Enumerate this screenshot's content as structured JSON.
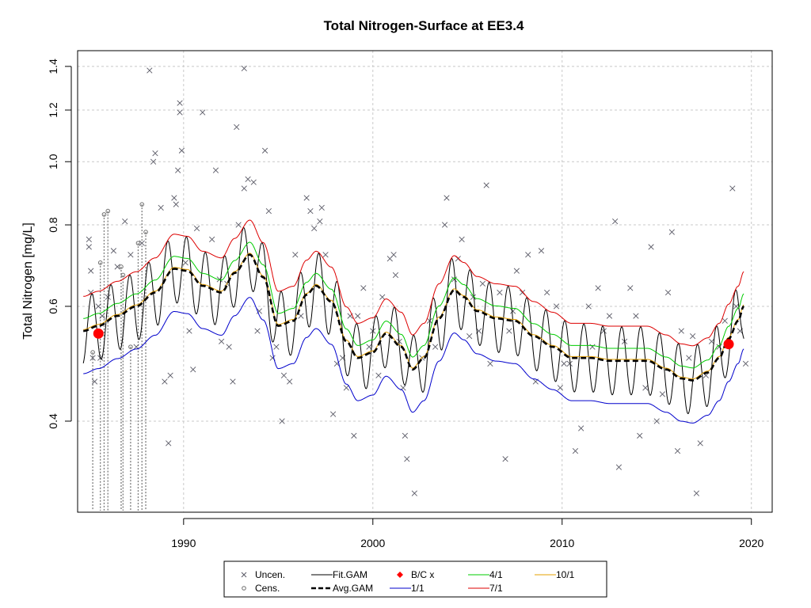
{
  "chart_data": {
    "type": "line",
    "title": "Total Nitrogen-Surface at EE3.4",
    "xlabel": "",
    "ylabel": "Total Nitrogen [mg/L]",
    "ylog": true,
    "xlim": [
      1984.4,
      2021.1
    ],
    "ylim": [
      0.29,
      1.48
    ],
    "x_ticks": [
      1990,
      2000,
      2010,
      2020
    ],
    "x_tick_labels": [
      "1990",
      "2000",
      "2010",
      "2020"
    ],
    "y_ticks": [
      0.4,
      0.6,
      0.8,
      1.0,
      1.2,
      1.4
    ],
    "y_tick_labels": [
      "0.4",
      "0.6",
      "0.8",
      "1.0",
      "1.2",
      "1.4"
    ],
    "grid": true,
    "legend_position": "bottom",
    "legend": [
      {
        "label": "Uncen.",
        "marker": "x",
        "color": "#5a5a66"
      },
      {
        "label": "Cens.",
        "marker": "o",
        "color": "#6e6e6e"
      },
      {
        "label": "Fit.GAM",
        "line": "solid",
        "color": "#000000"
      },
      {
        "label": "Avg.GAM",
        "line": "dashed",
        "color": "#000000"
      },
      {
        "label": "B/C x",
        "marker": "diamond",
        "color": "#ff0000"
      },
      {
        "label": "1/1",
        "line": "solid",
        "color": "#0000cc"
      },
      {
        "label": "4/1",
        "line": "solid",
        "color": "#00cc00"
      },
      {
        "label": "7/1",
        "line": "solid",
        "color": "#dd0000"
      },
      {
        "label": "10/1",
        "line": "solid",
        "color": "#e6a000"
      }
    ],
    "avg_gam": {
      "x": [
        1984.7,
        1985.5,
        1986.5,
        1987.5,
        1988.5,
        1989.5,
        1990.2,
        1991,
        1992,
        1992.7,
        1993.5,
        1994.2,
        1995,
        1995.8,
        1996.5,
        1997,
        1997.8,
        1998.6,
        1999.2,
        2000,
        2000.7,
        2001.5,
        2002.1,
        2002.7,
        2003.5,
        2004.3,
        2004.8,
        2005.5,
        2006.5,
        2007.5,
        2008.5,
        2009.5,
        2010.5,
        2011.5,
        2012.5,
        2013.5,
        2014.5,
        2015.5,
        2016.3,
        2016.9,
        2017.7,
        2018.3,
        2018.8,
        2019.3,
        2019.6
      ],
      "y": [
        0.55,
        0.56,
        0.58,
        0.6,
        0.63,
        0.685,
        0.68,
        0.645,
        0.63,
        0.675,
        0.72,
        0.665,
        0.56,
        0.57,
        0.625,
        0.645,
        0.61,
        0.53,
        0.5,
        0.51,
        0.545,
        0.52,
        0.48,
        0.5,
        0.575,
        0.635,
        0.62,
        0.59,
        0.575,
        0.57,
        0.54,
        0.52,
        0.5,
        0.5,
        0.495,
        0.495,
        0.495,
        0.48,
        0.465,
        0.462,
        0.475,
        0.5,
        0.535,
        0.57,
        0.6
      ]
    },
    "series": [
      {
        "name": "1/1",
        "color": "#0000cc",
        "factor": 0.86
      },
      {
        "name": "4/1",
        "color": "#00cc00",
        "factor": 1.045
      },
      {
        "name": "7/1",
        "color": "#dd0000",
        "factor": 1.13
      },
      {
        "name": "10/1",
        "color": "#e6a000",
        "factor": 1.005
      }
    ],
    "fit_gam_seasonal_amplitude": 0.12,
    "bc_points": [
      {
        "x": 1985.5,
        "y": 0.545
      },
      {
        "x": 2018.8,
        "y": 0.525
      }
    ],
    "uncensored_points": [
      [
        1985,
        0.76
      ],
      [
        1985,
        0.74
      ],
      [
        1985.1,
        0.63
      ],
      [
        1985.1,
        0.68
      ],
      [
        1985.2,
        0.5
      ],
      [
        1985.3,
        0.46
      ],
      [
        1985.5,
        0.6
      ],
      [
        1985.6,
        0.5
      ],
      [
        1985.7,
        0.58
      ],
      [
        1986,
        0.62
      ],
      [
        1986.3,
        0.73
      ],
      [
        1986.5,
        0.69
      ],
      [
        1986.9,
        0.81
      ],
      [
        1987.2,
        0.72
      ],
      [
        1987.5,
        0.52
      ],
      [
        1987.8,
        0.75
      ],
      [
        1988.2,
        1.38
      ],
      [
        1988.4,
        1.0
      ],
      [
        1988.5,
        1.03
      ],
      [
        1988.8,
        0.85
      ],
      [
        1989,
        0.46
      ],
      [
        1989.2,
        0.37
      ],
      [
        1989.3,
        0.47
      ],
      [
        1989.5,
        0.88
      ],
      [
        1989.6,
        0.86
      ],
      [
        1989.7,
        0.97
      ],
      [
        1989.8,
        1.23
      ],
      [
        1989.8,
        1.19
      ],
      [
        1989.9,
        1.04
      ],
      [
        1990.1,
        0.7
      ],
      [
        1990.3,
        0.55
      ],
      [
        1990.5,
        0.48
      ],
      [
        1990.7,
        0.79
      ],
      [
        1991,
        1.19
      ],
      [
        1991.5,
        0.76
      ],
      [
        1991.7,
        0.97
      ],
      [
        1991.9,
        0.66
      ],
      [
        1992,
        0.53
      ],
      [
        1992.3,
        0.65
      ],
      [
        1992.4,
        0.52
      ],
      [
        1992.6,
        0.46
      ],
      [
        1992.8,
        1.13
      ],
      [
        1992.9,
        0.8
      ],
      [
        1993.2,
        1.39
      ],
      [
        1993.2,
        0.91
      ],
      [
        1993.4,
        0.94
      ],
      [
        1993.7,
        0.93
      ],
      [
        1993.9,
        0.55
      ],
      [
        1994,
        0.59
      ],
      [
        1994.3,
        1.04
      ],
      [
        1994.5,
        0.84
      ],
      [
        1994.7,
        0.5
      ],
      [
        1994.9,
        0.52
      ],
      [
        1995.2,
        0.4
      ],
      [
        1995.3,
        0.47
      ],
      [
        1995.6,
        0.46
      ],
      [
        1995.9,
        0.72
      ],
      [
        1996.2,
        0.58
      ],
      [
        1996.5,
        0.88
      ],
      [
        1996.7,
        0.84
      ],
      [
        1996.9,
        0.79
      ],
      [
        1997.2,
        0.81
      ],
      [
        1997.3,
        0.85
      ],
      [
        1997.5,
        0.72
      ],
      [
        1997.9,
        0.41
      ],
      [
        1998.1,
        0.49
      ],
      [
        1998.4,
        0.5
      ],
      [
        1998.6,
        0.45
      ],
      [
        1998.8,
        0.58
      ],
      [
        1999,
        0.38
      ],
      [
        1999.2,
        0.58
      ],
      [
        1999.5,
        0.64
      ],
      [
        1999.8,
        0.52
      ],
      [
        2000,
        0.55
      ],
      [
        2000.3,
        0.47
      ],
      [
        2000.5,
        0.62
      ],
      [
        2000.9,
        0.71
      ],
      [
        2001.1,
        0.72
      ],
      [
        2001.2,
        0.67
      ],
      [
        2001.4,
        0.53
      ],
      [
        2001.6,
        0.45
      ],
      [
        2001.7,
        0.38
      ],
      [
        2001.8,
        0.35
      ],
      [
        2002.2,
        0.31
      ],
      [
        2002.6,
        0.5
      ],
      [
        2003.0,
        0.57
      ],
      [
        2003.3,
        0.52
      ],
      [
        2003.8,
        0.8
      ],
      [
        2003.9,
        0.88
      ],
      [
        2004.3,
        0.66
      ],
      [
        2004.5,
        0.71
      ],
      [
        2004.7,
        0.76
      ],
      [
        2005.1,
        0.54
      ],
      [
        2005.3,
        0.62
      ],
      [
        2005.6,
        0.55
      ],
      [
        2005.8,
        0.65
      ],
      [
        2006.0,
        0.92
      ],
      [
        2006.2,
        0.49
      ],
      [
        2006.7,
        0.63
      ],
      [
        2007.0,
        0.35
      ],
      [
        2007.2,
        0.55
      ],
      [
        2007.4,
        0.59
      ],
      [
        2007.6,
        0.68
      ],
      [
        2007.9,
        0.63
      ],
      [
        2008.2,
        0.72
      ],
      [
        2008.6,
        0.46
      ],
      [
        2008.9,
        0.73
      ],
      [
        2009.2,
        0.63
      ],
      [
        2009.7,
        0.6
      ],
      [
        2009.9,
        0.45
      ],
      [
        2010.1,
        0.49
      ],
      [
        2010.4,
        0.49
      ],
      [
        2010.7,
        0.36
      ],
      [
        2011.0,
        0.39
      ],
      [
        2011.4,
        0.6
      ],
      [
        2011.6,
        0.52
      ],
      [
        2011.9,
        0.64
      ],
      [
        2012.2,
        0.55
      ],
      [
        2012.5,
        0.58
      ],
      [
        2012.8,
        0.81
      ],
      [
        2013.0,
        0.34
      ],
      [
        2013.3,
        0.53
      ],
      [
        2013.6,
        0.64
      ],
      [
        2013.9,
        0.58
      ],
      [
        2014.1,
        0.38
      ],
      [
        2014.4,
        0.45
      ],
      [
        2014.7,
        0.74
      ],
      [
        2015.0,
        0.4
      ],
      [
        2015.3,
        0.44
      ],
      [
        2015.6,
        0.63
      ],
      [
        2015.8,
        0.78
      ],
      [
        2016.1,
        0.36
      ],
      [
        2016.3,
        0.55
      ],
      [
        2016.7,
        0.5
      ],
      [
        2016.9,
        0.54
      ],
      [
        2017.1,
        0.31
      ],
      [
        2017.3,
        0.37
      ],
      [
        2017.6,
        0.47
      ],
      [
        2017.9,
        0.53
      ],
      [
        2018.3,
        0.52
      ],
      [
        2018.6,
        0.57
      ],
      [
        2019.0,
        0.91
      ],
      [
        2019.2,
        0.6
      ],
      [
        2019.4,
        0.55
      ],
      [
        2019.7,
        0.49
      ]
    ],
    "censored_points": [
      {
        "x": 1985.2,
        "y_top": 0.51,
        "y_bottom": 0.29
      },
      {
        "x": 1985.6,
        "y_top": 0.7,
        "y_bottom": 0.29
      },
      {
        "x": 1985.8,
        "y_top": 0.83,
        "y_bottom": 0.29
      },
      {
        "x": 1986.0,
        "y_top": 0.84,
        "y_bottom": 0.29
      },
      {
        "x": 1986.7,
        "y_top": 0.69,
        "y_bottom": 0.29
      },
      {
        "x": 1986.8,
        "y_top": 0.67,
        "y_bottom": 0.29
      },
      {
        "x": 1987.2,
        "y_top": 0.52,
        "y_bottom": 0.29
      },
      {
        "x": 1987.6,
        "y_top": 0.75,
        "y_bottom": 0.29
      },
      {
        "x": 1987.8,
        "y_top": 0.86,
        "y_bottom": 0.29
      },
      {
        "x": 1988.0,
        "y_top": 0.78,
        "y_bottom": 0.29
      }
    ]
  }
}
